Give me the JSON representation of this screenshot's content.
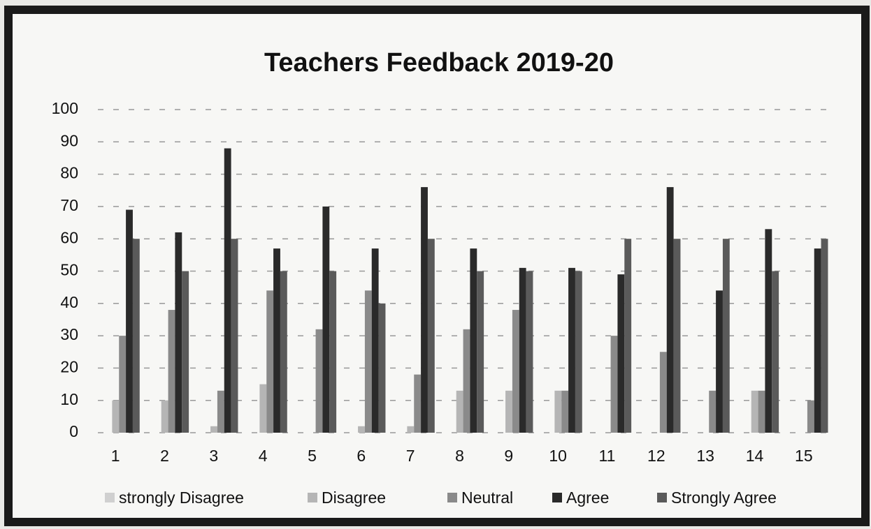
{
  "chart_data": {
    "type": "bar",
    "title": "Teachers Feedback 2019-20",
    "categories": [
      "1",
      "2",
      "3",
      "4",
      "5",
      "6",
      "7",
      "8",
      "9",
      "10",
      "11",
      "12",
      "13",
      "14",
      "15"
    ],
    "series": [
      {
        "name": "strongly Disagree",
        "color": "#d0d0d0",
        "values": [
          0,
          0,
          0,
          0,
          0,
          0,
          0,
          0,
          0,
          0,
          0,
          0,
          0,
          0,
          0
        ]
      },
      {
        "name": "Disagree",
        "color": "#b5b5b5",
        "values": [
          10,
          10,
          2,
          15,
          0,
          2,
          2,
          13,
          13,
          13,
          0,
          0,
          0,
          13,
          0
        ]
      },
      {
        "name": "Neutral",
        "color": "#8a8a8a",
        "values": [
          30,
          38,
          13,
          44,
          32,
          44,
          18,
          32,
          38,
          13,
          30,
          25,
          13,
          13,
          10
        ]
      },
      {
        "name": "Agree",
        "color": "#2a2a2a",
        "values": [
          69,
          62,
          88,
          57,
          70,
          57,
          76,
          57,
          51,
          51,
          49,
          76,
          44,
          63,
          57
        ]
      },
      {
        "name": "Strongly Agree",
        "color": "#5a5a5a",
        "values": [
          60,
          50,
          60,
          50,
          50,
          40,
          60,
          50,
          50,
          50,
          60,
          60,
          60,
          50,
          60
        ]
      }
    ],
    "ylim": [
      0,
      100
    ],
    "yticks": [
      0,
      10,
      20,
      30,
      40,
      50,
      60,
      70,
      80,
      90,
      100
    ],
    "grid": true
  }
}
